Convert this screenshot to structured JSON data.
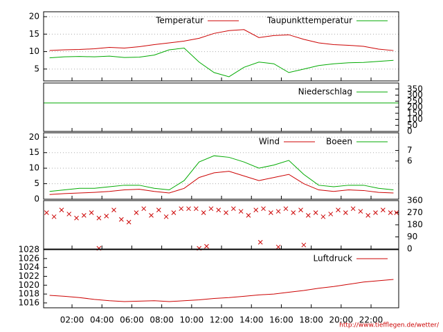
{
  "chart_data": [
    {
      "type": "line",
      "xlim": [
        0.1,
        23.85
      ],
      "ylim": [
        1.6,
        21.4
      ],
      "yticks": [
        5,
        10,
        15,
        20
      ],
      "grid": true,
      "x": [
        0.5,
        1.5,
        2.5,
        3.5,
        4.5,
        5.5,
        6.5,
        7.5,
        8.5,
        9.5,
        10.5,
        11.5,
        12.5,
        13.5,
        14.5,
        15.5,
        16.5,
        17.5,
        18.5,
        19.5,
        20.5,
        21.5,
        22.5,
        23.5
      ],
      "series": [
        {
          "name": "Temperatur",
          "color": "#cc0000",
          "values": [
            10.3,
            10.5,
            10.6,
            10.8,
            11.2,
            11.0,
            11.4,
            12.0,
            12.5,
            13.0,
            13.8,
            15.2,
            16.0,
            16.3,
            14.0,
            14.6,
            14.8,
            13.5,
            12.5,
            12.0,
            11.8,
            11.5,
            10.7,
            10.3
          ]
        },
        {
          "name": "Taupunkttemperatur",
          "color": "#00aa00",
          "values": [
            8.2,
            8.5,
            8.6,
            8.5,
            8.7,
            8.3,
            8.4,
            9.0,
            10.5,
            11.0,
            7.0,
            4.0,
            2.8,
            5.5,
            7.0,
            6.5,
            4.0,
            5.0,
            6.0,
            6.5,
            6.8,
            6.9,
            7.2,
            7.5
          ]
        }
      ]
    },
    {
      "type": "line",
      "xlim": [
        0.1,
        23.85
      ],
      "y2lim": [
        0,
        400
      ],
      "y2ticks": [
        0,
        50,
        100,
        150,
        200,
        250,
        300,
        350
      ],
      "x": [
        0.1,
        23.85
      ],
      "series": [
        {
          "name": "Niederschlag",
          "color": "#00aa00",
          "axis": "y2",
          "values": [
            235,
            235
          ]
        }
      ]
    },
    {
      "type": "line",
      "xlim": [
        0.1,
        23.85
      ],
      "ylim": [
        0,
        21.4
      ],
      "yticks": [
        0,
        5,
        10,
        15,
        20
      ],
      "grid": true,
      "bft_ticks": [
        {
          "value": 12.3,
          "label": "6"
        },
        {
          "value": 15.7,
          "label": "7"
        }
      ],
      "x": [
        0.5,
        1.5,
        2.5,
        3.5,
        4.5,
        5.5,
        6.5,
        7.5,
        8.5,
        9.5,
        10.5,
        11.5,
        12.5,
        13.5,
        14.5,
        15.5,
        16.5,
        17.5,
        18.5,
        19.5,
        20.5,
        21.5,
        22.5,
        23.5
      ],
      "series": [
        {
          "name": "Wind",
          "color": "#cc0000",
          "values": [
            1.5,
            1.8,
            2.0,
            2.2,
            2.5,
            3.0,
            3.2,
            2.5,
            2.0,
            3.5,
            7.0,
            8.5,
            9.0,
            7.5,
            6.0,
            7.0,
            8.0,
            5.0,
            3.0,
            2.5,
            3.0,
            2.8,
            2.2,
            2.0
          ]
        },
        {
          "name": "Boeen",
          "color": "#00aa00",
          "values": [
            2.5,
            3.0,
            3.5,
            3.5,
            4.0,
            4.5,
            4.5,
            3.5,
            3.0,
            6.0,
            12.0,
            14.0,
            13.5,
            12.0,
            10.0,
            11.0,
            12.5,
            8.0,
            4.5,
            4.0,
            4.5,
            4.5,
            3.5,
            3.0
          ]
        }
      ]
    },
    {
      "type": "scatter",
      "xlim": [
        0.1,
        23.85
      ],
      "y2lim": [
        0,
        360
      ],
      "y2ticks": [
        0,
        90,
        180,
        270,
        360
      ],
      "x": [
        0.3,
        0.8,
        1.3,
        1.8,
        2.3,
        2.8,
        3.3,
        3.8,
        4.3,
        4.8,
        5.3,
        5.8,
        6.3,
        6.8,
        7.3,
        7.8,
        8.3,
        8.8,
        9.3,
        9.8,
        10.3,
        10.8,
        11.3,
        11.8,
        12.3,
        12.8,
        13.3,
        13.8,
        14.3,
        14.8,
        15.3,
        15.8,
        16.3,
        16.8,
        17.3,
        17.8,
        18.3,
        18.8,
        19.3,
        19.8,
        20.3,
        20.8,
        21.3,
        21.8,
        22.3,
        22.8,
        23.3,
        23.7,
        3.8,
        10.5,
        14.6,
        17.5,
        11.0,
        15.8
      ],
      "series": [
        {
          "name": null,
          "color": "#cc0000",
          "axis": "y2",
          "values": [
            270,
            240,
            290,
            260,
            230,
            250,
            270,
            230,
            245,
            290,
            220,
            200,
            270,
            300,
            250,
            290,
            240,
            270,
            300,
            300,
            300,
            270,
            300,
            290,
            270,
            300,
            280,
            250,
            290,
            300,
            270,
            280,
            300,
            270,
            290,
            250,
            270,
            240,
            260,
            290,
            270,
            300,
            280,
            250,
            270,
            290,
            270,
            270,
            5,
            5,
            50,
            30,
            20,
            15
          ]
        }
      ]
    },
    {
      "type": "line",
      "xlim": [
        0.1,
        23.85
      ],
      "ylim": [
        1014.9,
        1028
      ],
      "yticks": [
        1016,
        1018,
        1020,
        1022,
        1024,
        1026,
        1028
      ],
      "grid": false,
      "xticks": [
        {
          "value": 2,
          "label": "02:00"
        },
        {
          "value": 4,
          "label": "04:00"
        },
        {
          "value": 6,
          "label": "06:00"
        },
        {
          "value": 8,
          "label": "08:00"
        },
        {
          "value": 10,
          "label": "10:00"
        },
        {
          "value": 12,
          "label": "12:00"
        },
        {
          "value": 14,
          "label": "14:00"
        },
        {
          "value": 16,
          "label": "16:00"
        },
        {
          "value": 18,
          "label": "18:00"
        },
        {
          "value": 20,
          "label": "20:00"
        },
        {
          "value": 22,
          "label": "22:00"
        }
      ],
      "x": [
        0.5,
        1.5,
        2.5,
        3.5,
        4.5,
        5.5,
        6.5,
        7.5,
        8.5,
        9.5,
        10.5,
        11.5,
        12.5,
        13.5,
        14.5,
        15.5,
        16.5,
        17.5,
        18.5,
        19.5,
        20.5,
        21.5,
        22.5,
        23.5
      ],
      "series": [
        {
          "name": "Luftdruck",
          "color": "#cc0000",
          "values": [
            1017.7,
            1017.5,
            1017.2,
            1016.8,
            1016.5,
            1016.3,
            1016.4,
            1016.5,
            1016.3,
            1016.5,
            1016.7,
            1017.0,
            1017.2,
            1017.5,
            1017.8,
            1018.0,
            1018.4,
            1018.8,
            1019.3,
            1019.7,
            1020.2,
            1020.7,
            1021.0,
            1021.3
          ]
        }
      ]
    }
  ],
  "footer": "http://www.tiefflegen.de/wetter/"
}
